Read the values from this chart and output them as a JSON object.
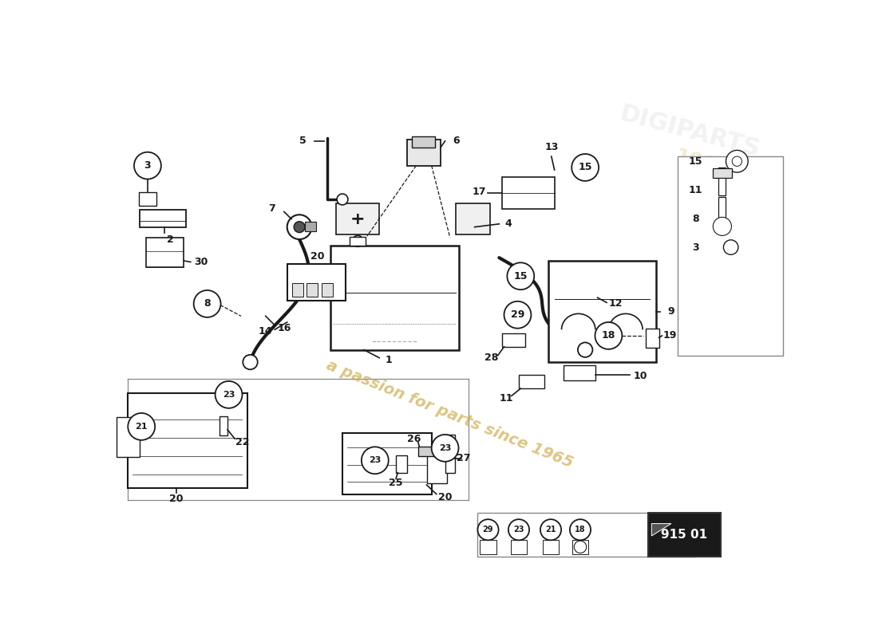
{
  "background_color": "#ffffff",
  "line_color": "#1a1a1a",
  "watermark_text": "a passion for parts since 1965",
  "watermark_color": "#c8a840",
  "part_numbers": [
    1,
    2,
    3,
    4,
    5,
    6,
    7,
    8,
    9,
    10,
    11,
    12,
    13,
    14,
    15,
    16,
    17,
    18,
    19,
    20,
    21,
    22,
    23,
    25,
    26,
    27,
    28,
    29,
    30
  ]
}
